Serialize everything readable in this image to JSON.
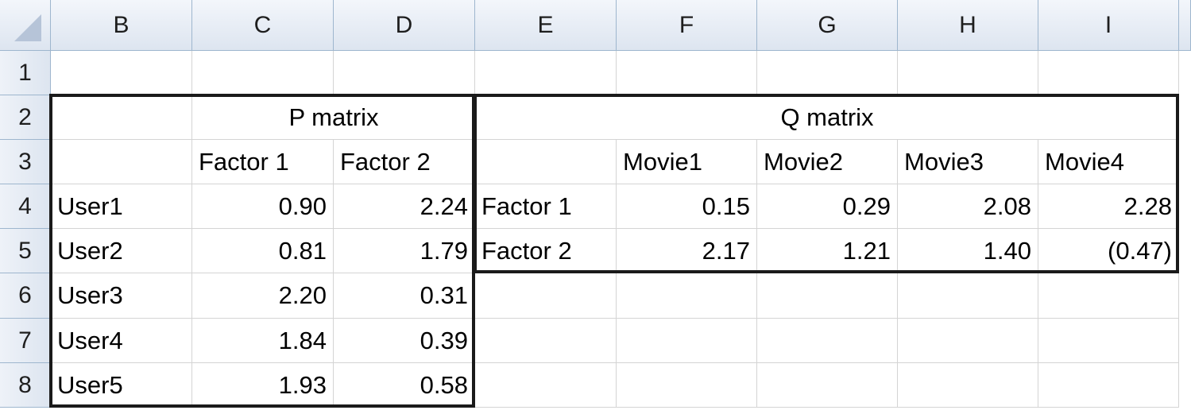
{
  "column_headers": [
    "B",
    "C",
    "D",
    "E",
    "F",
    "G",
    "H",
    "I"
  ],
  "row_headers": [
    "1",
    "2",
    "3",
    "4",
    "5",
    "6",
    "7",
    "8"
  ],
  "p_matrix": {
    "title": "P matrix",
    "factor_headers": [
      "Factor 1",
      "Factor 2"
    ],
    "rows": [
      {
        "user": "User1",
        "f1": "0.90",
        "f2": "2.24"
      },
      {
        "user": "User2",
        "f1": "0.81",
        "f2": "1.79"
      },
      {
        "user": "User3",
        "f1": "2.20",
        "f2": "0.31"
      },
      {
        "user": "User4",
        "f1": "1.84",
        "f2": "0.39"
      },
      {
        "user": "User5",
        "f1": "1.93",
        "f2": "0.58"
      }
    ]
  },
  "q_matrix": {
    "title": "Q matrix",
    "movie_headers": [
      "Movie1",
      "Movie2",
      "Movie3",
      "Movie4"
    ],
    "rows": [
      {
        "factor": "Factor 1",
        "values": [
          "0.15",
          "0.29",
          "2.08",
          "2.28"
        ]
      },
      {
        "factor": "Factor 2",
        "values": [
          "2.17",
          "1.21",
          "1.40",
          "(0.47)"
        ]
      }
    ]
  }
}
